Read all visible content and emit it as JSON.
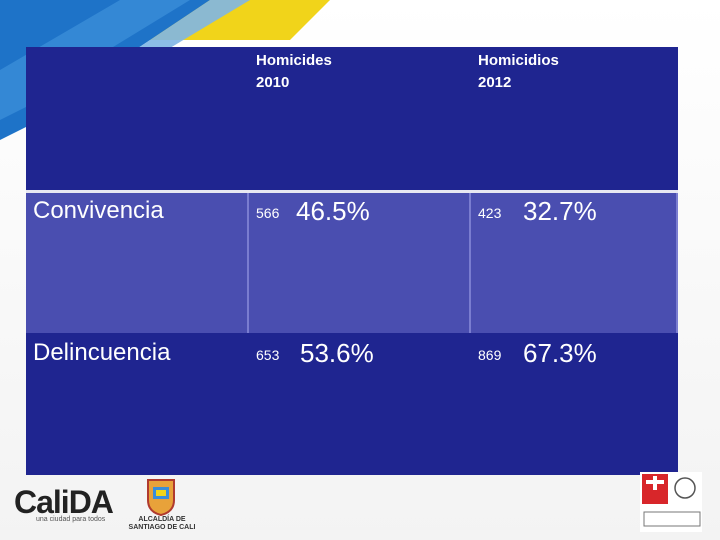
{
  "table": {
    "headers": [
      {
        "line1": "Homicides",
        "line2": "2010"
      },
      {
        "line1": "Homicidios",
        "line2": "2012"
      }
    ],
    "rows": [
      {
        "label": "Convivencia",
        "n2010": "566",
        "p2010": "46.5%",
        "n2012": "423",
        "p2012": "32.7%"
      },
      {
        "label": "Delincuencia",
        "n2010": "653",
        "p2010": "53.6%",
        "n2012": "869",
        "p2012": "67.3%"
      }
    ]
  },
  "footer": {
    "calida_logo": "CaliDA",
    "calida_tagline": "una ciudad para todos",
    "alcaldia_line1": "ALCALDÍA DE",
    "alcaldia_line2": "SANTIAGO DE CALI"
  },
  "colors": {
    "panel": "#1f2590",
    "highlight_row": "#4a4eb0",
    "accent_yellow": "#f1d41a",
    "accent_blue": "#1e73c8"
  }
}
